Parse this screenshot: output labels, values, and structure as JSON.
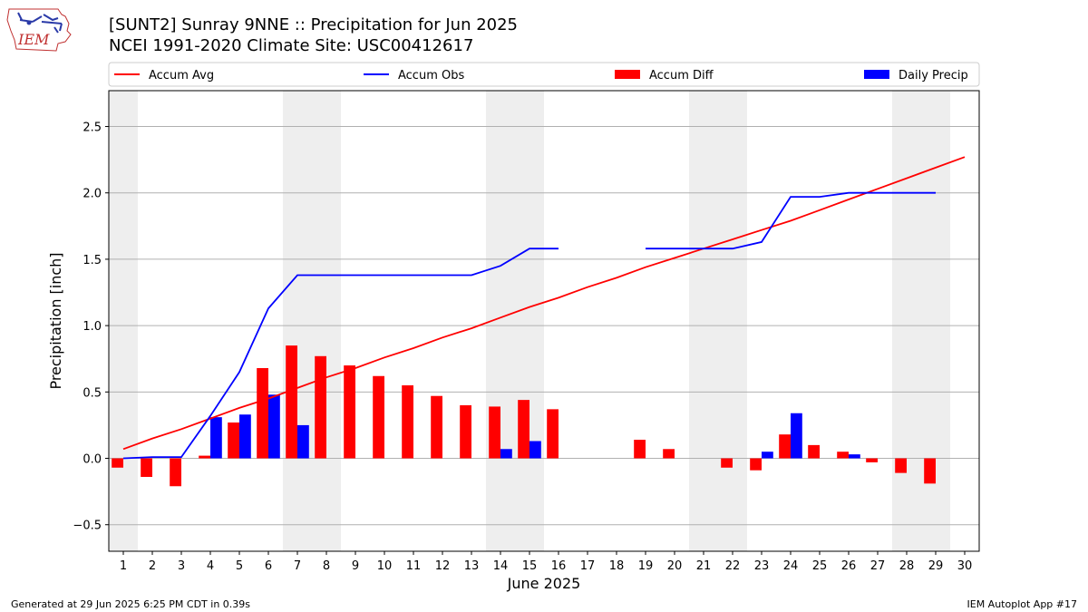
{
  "header": {
    "title_line1": "[SUNT2] Sunray 9NNE :: Precipitation for Jun 2025",
    "title_line2": "NCEI 1991-2020 Climate Site: USC00412617",
    "logo_text": "IEM"
  },
  "footer": {
    "generated": "Generated at 29 Jun 2025 6:25 PM CDT in 0.39s",
    "app": "IEM Autoplot App #17"
  },
  "colors": {
    "avg": "#ff0000",
    "obs": "#0000ff",
    "diff": "#ff0000",
    "daily": "#0000ff",
    "weekend_shade": "#eeeeee",
    "grid": "#b0b0b0"
  },
  "chart_data": {
    "type": "bar",
    "xlabel": "June 2025",
    "ylabel": "Precipitation [inch]",
    "xlim": [
      0.5,
      30.5
    ],
    "ylim": [
      -0.7,
      2.77
    ],
    "yticks": [
      -0.5,
      0.0,
      0.5,
      1.0,
      1.5,
      2.0,
      2.5
    ],
    "ytick_labels": [
      "−0.5",
      "0.0",
      "0.5",
      "1.0",
      "1.5",
      "2.0",
      "2.5"
    ],
    "grid": "y",
    "legend_placement": "top",
    "days": [
      1,
      2,
      3,
      4,
      5,
      6,
      7,
      8,
      9,
      10,
      11,
      12,
      13,
      14,
      15,
      16,
      17,
      18,
      19,
      20,
      21,
      22,
      23,
      24,
      25,
      26,
      27,
      28,
      29,
      30
    ],
    "shaded_days": [
      1,
      7,
      8,
      14,
      15,
      21,
      22,
      28,
      29
    ],
    "series": [
      {
        "name": "Accum Avg",
        "kind": "line",
        "days": [
          1,
          2,
          3,
          4,
          5,
          6,
          7,
          8,
          9,
          10,
          11,
          12,
          13,
          14,
          15,
          16,
          17,
          18,
          19,
          20,
          21,
          22,
          23,
          24,
          25,
          26,
          27,
          28,
          29,
          30
        ],
        "values": [
          0.07,
          0.15,
          0.22,
          0.3,
          0.38,
          0.45,
          0.53,
          0.61,
          0.68,
          0.76,
          0.83,
          0.91,
          0.98,
          1.06,
          1.14,
          1.21,
          1.29,
          1.36,
          1.44,
          1.51,
          1.58,
          1.65,
          1.72,
          1.79,
          1.87,
          1.95,
          2.03,
          2.11,
          2.19,
          2.27
        ]
      },
      {
        "name": "Accum Obs",
        "kind": "line",
        "days": [
          1,
          2,
          3,
          4,
          5,
          6,
          7,
          8,
          9,
          10,
          11,
          12,
          13,
          14,
          15,
          16,
          17,
          18,
          19,
          20,
          21,
          22,
          23,
          24,
          25,
          26,
          27,
          28,
          29
        ],
        "values": [
          0.0,
          0.01,
          0.01,
          0.32,
          0.65,
          1.13,
          1.38,
          1.38,
          1.38,
          1.38,
          1.38,
          1.38,
          1.38,
          1.45,
          1.58,
          1.58,
          null,
          null,
          1.58,
          1.58,
          1.58,
          1.58,
          1.63,
          1.97,
          1.97,
          2.0,
          2.0,
          2.0,
          2.0
        ]
      },
      {
        "name": "Accum Diff",
        "kind": "bar",
        "days": [
          1,
          2,
          3,
          4,
          5,
          6,
          7,
          8,
          9,
          10,
          11,
          12,
          13,
          14,
          15,
          16,
          19,
          20,
          22,
          23,
          24,
          25,
          26,
          27,
          28,
          29
        ],
        "values": [
          -0.07,
          -0.14,
          -0.21,
          0.02,
          0.27,
          0.68,
          0.85,
          0.77,
          0.7,
          0.62,
          0.55,
          0.47,
          0.4,
          0.39,
          0.44,
          0.37,
          0.14,
          0.07,
          -0.07,
          -0.09,
          0.18,
          0.1,
          0.05,
          -0.03,
          -0.11,
          -0.19
        ]
      },
      {
        "name": "Daily Precip",
        "kind": "bar",
        "days": [
          4,
          5,
          6,
          7,
          14,
          15,
          23,
          24,
          26
        ],
        "values": [
          0.31,
          0.33,
          0.48,
          0.25,
          0.07,
          0.13,
          0.05,
          0.34,
          0.03
        ]
      }
    ]
  }
}
